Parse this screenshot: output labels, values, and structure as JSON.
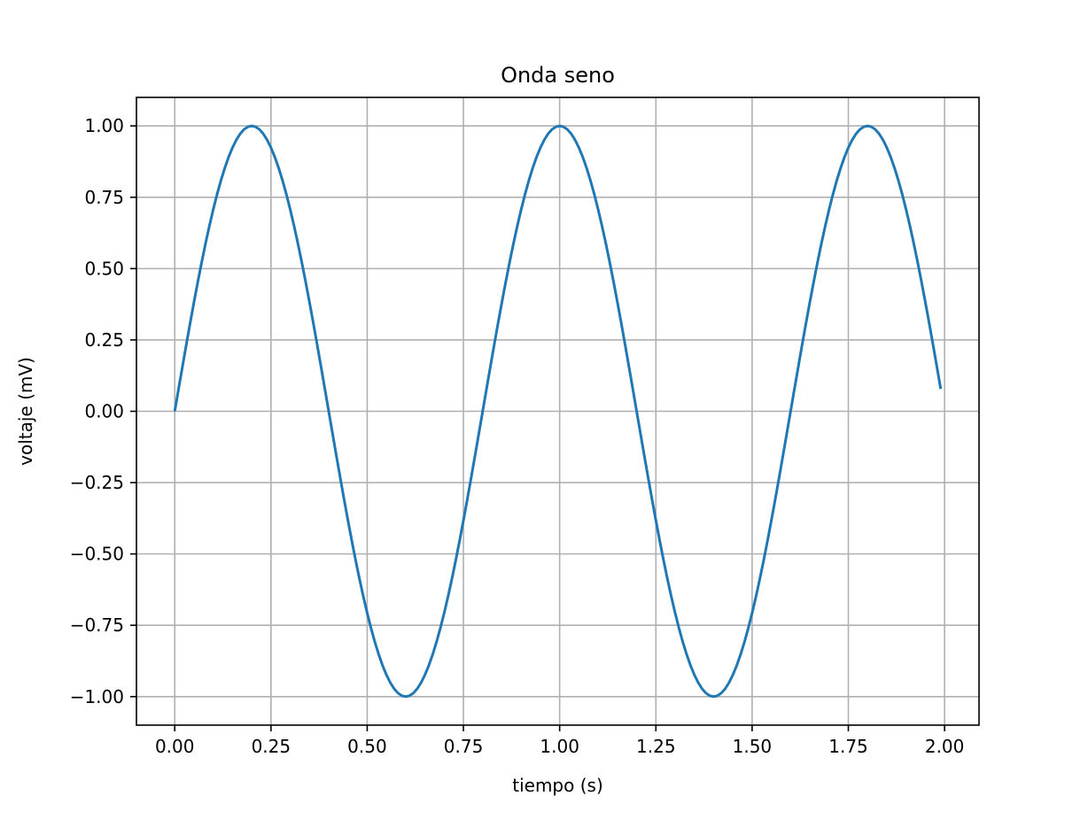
{
  "chart_data": {
    "type": "line",
    "title": "Onda seno",
    "xlabel": "tiempo (s)",
    "ylabel": "voltaje (mV)",
    "xlim": [
      -0.0995,
      2.0895
    ],
    "ylim": [
      -1.1,
      1.1
    ],
    "xticks": [
      0.0,
      0.25,
      0.5,
      0.75,
      1.0,
      1.25,
      1.5,
      1.75,
      2.0
    ],
    "xtick_labels": [
      "0.00",
      "0.25",
      "0.50",
      "0.75",
      "1.00",
      "1.25",
      "1.50",
      "1.75",
      "2.00"
    ],
    "yticks": [
      -1.0,
      -0.75,
      -0.5,
      -0.25,
      0.0,
      0.25,
      0.5,
      0.75,
      1.0
    ],
    "ytick_labels": [
      "−1.00",
      "−0.75",
      "−0.50",
      "−0.25",
      "0.00",
      "0.25",
      "0.50",
      "0.75",
      "1.00"
    ],
    "grid": true,
    "series": [
      {
        "color": "#1f77b4",
        "function": "sin(2*pi*1.25*t)",
        "frequency_hz": 1.25,
        "amplitude": 1.0,
        "x_start": 0.0,
        "x_stop": 1.99,
        "x_step": 0.01
      }
    ]
  }
}
